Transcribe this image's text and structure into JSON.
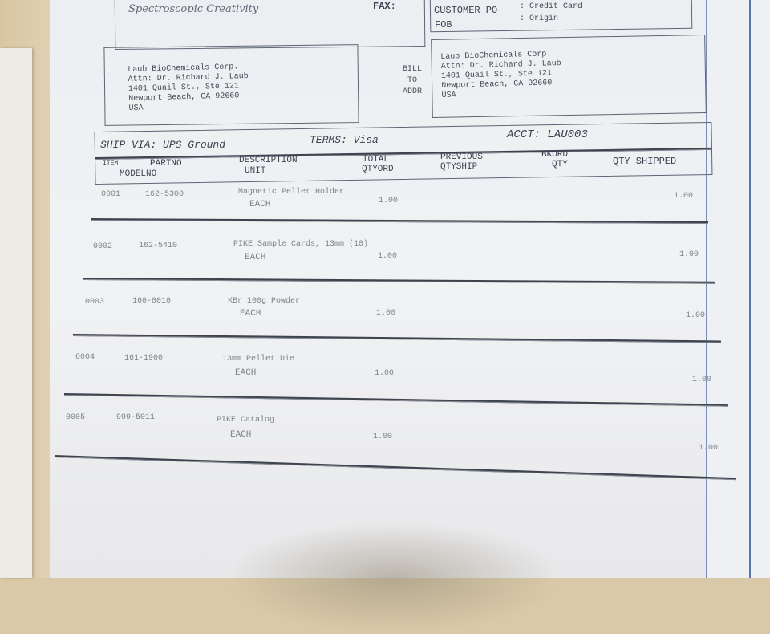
{
  "header": {
    "logo_text": "Spectroscopic Creativity",
    "fax_label": "FAX:",
    "customer_po_label": "CUSTOMER PO",
    "customer_po_value": ": Credit Card",
    "fob_label": "FOB",
    "fob_value": ": Origin"
  },
  "ship_to": {
    "lines": [
      "Laub BioChemicals Corp.",
      "Attn: Dr. Richard J. Laub",
      "1401 Quail St., Ste 121",
      "Newport Beach, CA 92660",
      "USA"
    ]
  },
  "bill_to": {
    "label": [
      "BILL",
      "TO",
      "ADDR"
    ],
    "lines": [
      "Laub BioChemicals Corp.",
      "Attn: Dr. Richard J. Laub",
      "1401 Quail St., Ste 121",
      "Newport Beach, CA 92660",
      "USA"
    ]
  },
  "terms_bar": {
    "ship_via": "SHIP VIA: UPS Ground",
    "terms": "TERMS: Visa",
    "acct": "ACCT: LAU003"
  },
  "columns": {
    "item": "ITEM",
    "partno": "PARTNO",
    "modelno": "MODELNO",
    "description": "DESCRIPTION",
    "unit": "UNIT",
    "total1": "TOTAL",
    "total2": "QTYORD",
    "prev1": "PREVIOUS",
    "prev2": "QTYSHIP",
    "bkord1": "BKORD",
    "bkord2": "QTY",
    "qty_shipped": "QTY SHIPPED"
  },
  "rows": [
    {
      "item": "0001",
      "partno": "162-5300",
      "description": "Magnetic Pellet Holder",
      "unit": "EACH",
      "qty_ordered": "1.00",
      "qty_shipped": "1.00"
    },
    {
      "item": "0002",
      "partno": "162-5410",
      "description": "PIKE Sample Cards, 13mm (10)",
      "unit": "EACH",
      "qty_ordered": "1.00",
      "qty_shipped": "1.00"
    },
    {
      "item": "0003",
      "partno": "160-8010",
      "description": "KBr 100g Powder",
      "unit": "EACH",
      "qty_ordered": "1.00",
      "qty_shipped": "1.00"
    },
    {
      "item": "0004",
      "partno": "161-1900",
      "description": "13mm Pellet Die",
      "unit": "EACH",
      "qty_ordered": "1.00",
      "qty_shipped": "1.00"
    },
    {
      "item": "0005",
      "partno": "999-5011",
      "description": "PIKE Catalog",
      "unit": "EACH",
      "qty_ordered": "1.00",
      "qty_shipped": "1.00"
    }
  ]
}
